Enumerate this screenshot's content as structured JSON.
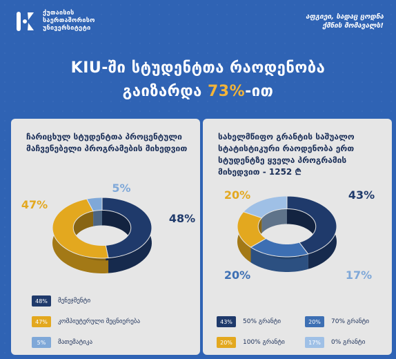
{
  "header": {
    "logo_text": "ქუთაისის\nსაერთაშორისო\nუნივერსიტეტი",
    "tagline": "აფგიეი, სადაც ცოდნა\nქმნის მომავალს!",
    "title_line1": "KIU-ში სტუდენტთა რაოდენობა",
    "title_line2_prefix": "გაიზარდა ",
    "title_line2_accent": "73%",
    "title_line2_suffix": "-ით"
  },
  "colors": {
    "navy": "#1f3a6b",
    "gold": "#e3a81f",
    "sky": "#7fa8d8",
    "blue": "#3d6fb3",
    "pale": "#9fc0e6",
    "background": "#2f63b4",
    "card": "#e6e6e6"
  },
  "chart_data": [
    {
      "type": "pie",
      "title": "ჩარიცხულ სტუდენტთა პროცენტული მაჩვენებელი პროგრამების მიხედვით",
      "categories": [
        "მენეჯმენტი",
        "კომპიუტერული მეცნიერება",
        "მათემატიკა"
      ],
      "values": [
        48,
        47,
        5
      ],
      "labels": [
        "48%",
        "47%",
        "5%"
      ],
      "colors": [
        "#1f3a6b",
        "#e3a81f",
        "#7fa8d8"
      ],
      "legend_position": "bottom"
    },
    {
      "type": "pie",
      "title": "სახელმწიფო გრანტის საშუალო სტატისტიკური რაოდენობა ერთ სტუდენტზე ყველა პროგრამის მიხედვით - ",
      "average_value": "1252 ₾",
      "categories": [
        "50% გრანტი",
        "70% გრანტი",
        "100% გრანტი",
        "0% გრანტი"
      ],
      "values": [
        43,
        20,
        20,
        17
      ],
      "labels": [
        "43%",
        "20%",
        "20%",
        "17%"
      ],
      "colors": [
        "#1f3a6b",
        "#3d6fb3",
        "#e3a81f",
        "#9fc0e6"
      ],
      "legend_position": "bottom"
    }
  ]
}
